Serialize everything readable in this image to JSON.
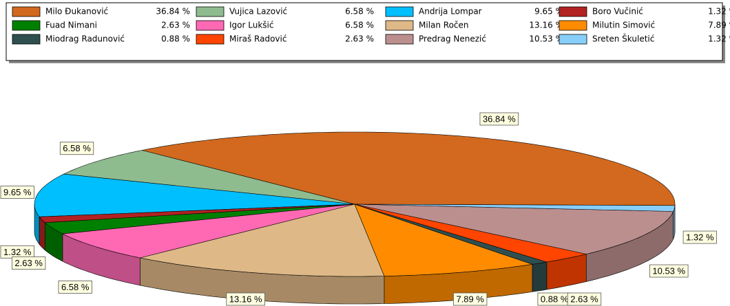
{
  "chart_data": {
    "type": "pie",
    "categories": [
      "Milo Đukanović",
      "Vujica Lazović",
      "Andrija Lompar",
      "Boro Vučinić",
      "Fuad Nimani",
      "Igor Lukšić",
      "Milan Ročen",
      "Milutin Simović",
      "Miodrag Radunović",
      "Miraš Radović",
      "Predrag Nenezić",
      "Sreten Škuletić"
    ],
    "values": [
      36.84,
      6.58,
      9.65,
      1.32,
      2.63,
      6.58,
      13.16,
      7.89,
      0.88,
      2.63,
      10.53,
      1.32
    ],
    "value_labels": [
      "36.84 %",
      "6.58 %",
      "9.65 %",
      "1.32 %",
      "2.63 %",
      "6.58 %",
      "13.16 %",
      "7.89 %",
      "0.88 %",
      "2.63 %",
      "10.53 %",
      "1.32 %"
    ],
    "colors": [
      "#d2691e",
      "#8fbc8f",
      "#00bfff",
      "#b22222",
      "#008000",
      "#ff69b4",
      "#deb887",
      "#ff8c00",
      "#2f4f4f",
      "#ff4500",
      "#bc8f8f",
      "#87cefa"
    ],
    "legend": "top"
  }
}
